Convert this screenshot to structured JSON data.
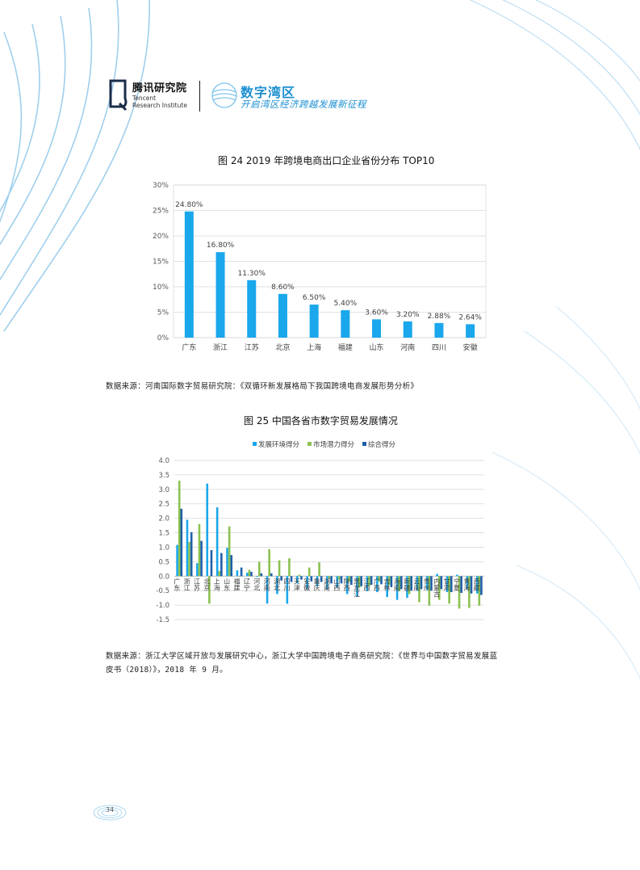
{
  "header": {
    "org_cn": "腾讯研究院",
    "org_en": "Tencent\nResearch Institute",
    "brand_title": "数字湾区",
    "brand_subtitle": "开启湾区经济跨越发展新征程"
  },
  "figure24": {
    "title": "图 24  2019 年跨境电商出口企业省份分布 TOP10",
    "source": "数据来源：河南国际数字贸易研究院：《双循环新发展格局下我国跨境电商发展形势分析》"
  },
  "figure25": {
    "title": "图 25  中国各省市数字贸易发展情况",
    "source_line1": "数据来源：浙江大学区域开放与发展研究中心，浙江大学中国跨境电子商务研究院：《世界与中国数字贸易发展蓝",
    "source_line2": "皮书（2018）》，2018 年 9 月。"
  },
  "page_number": "34",
  "colors": {
    "accent": "#1c8fd0",
    "bar24": "#1aa7ec",
    "env": "#1aa7ec",
    "potential": "#8cc152",
    "composite": "#1f5fa8"
  },
  "chart_data": [
    {
      "type": "bar",
      "categories": [
        "广东",
        "浙江",
        "江苏",
        "北京",
        "上海",
        "福建",
        "山东",
        "河南",
        "四川",
        "安徽"
      ],
      "values": [
        24.8,
        16.8,
        11.3,
        8.6,
        6.5,
        5.4,
        3.6,
        3.2,
        2.88,
        2.64
      ],
      "data_labels": [
        "24.80%",
        "16.80%",
        "11.30%",
        "8.60%",
        "6.50%",
        "5.40%",
        "3.60%",
        "3.20%",
        "2.88%",
        "2.64%"
      ],
      "y_ticks": [
        "0%",
        "5%",
        "10%",
        "15%",
        "20%",
        "25%",
        "30%"
      ],
      "ylim": [
        0,
        30
      ],
      "grid": true
    },
    {
      "type": "bar",
      "categories": [
        "广东",
        "浙江",
        "江苏",
        "北京",
        "上海",
        "山东",
        "福建",
        "辽宁",
        "河北",
        "河南",
        "湖北",
        "四川",
        "天津",
        "安徽",
        "重庆",
        "湖南",
        "山西",
        "陕西",
        "黑龙江",
        "江西",
        "广西",
        "吉林",
        "海南",
        "新疆",
        "云南",
        "贵州",
        "内蒙古",
        "甘肃",
        "宁夏",
        "青海",
        "西藏"
      ],
      "series": [
        {
          "name": "发展环境得分",
          "values": [
            1.08,
            1.95,
            0.45,
            3.2,
            2.38,
            0.98,
            0.2,
            0.12,
            -0.03,
            -0.95,
            -0.62,
            -0.95,
            -0.25,
            -0.45,
            -0.35,
            -0.45,
            -0.4,
            -0.62,
            -0.7,
            -0.52,
            -0.55,
            -0.72,
            -0.82,
            -0.75,
            -0.5,
            -0.48,
            0.08,
            -0.55,
            0.05,
            -0.45,
            -0.6
          ]
        },
        {
          "name": "市场潜力得分",
          "values": [
            3.3,
            1.18,
            1.8,
            -0.95,
            0.18,
            1.72,
            0.0,
            0.22,
            0.5,
            0.93,
            0.55,
            0.62,
            0.05,
            0.3,
            0.48,
            -0.08,
            -0.12,
            -0.2,
            -0.4,
            -0.35,
            -0.2,
            -0.3,
            -0.52,
            -0.62,
            -0.9,
            -1.02,
            -0.82,
            -0.95,
            -1.12,
            -1.1,
            -1.02
          ]
        },
        {
          "name": "综合得分",
          "values": [
            2.33,
            1.52,
            1.22,
            0.9,
            0.8,
            0.73,
            0.3,
            0.15,
            0.1,
            0.1,
            -0.15,
            -0.2,
            -0.12,
            -0.18,
            -0.2,
            -0.25,
            -0.25,
            -0.3,
            -0.35,
            -0.3,
            -0.28,
            -0.38,
            -0.45,
            -0.5,
            -0.45,
            -0.5,
            -0.45,
            -0.55,
            -0.58,
            -0.6,
            -0.65
          ]
        }
      ],
      "y_ticks": [
        "4.0",
        "3.5",
        "3.0",
        "2.5",
        "2.0",
        "1.5",
        "1.0",
        "0.5",
        "0.0",
        "-0.5",
        "-1.0",
        "-1.5"
      ],
      "ylim": [
        -1.5,
        4.0
      ],
      "legend": "top",
      "grid": true
    }
  ]
}
